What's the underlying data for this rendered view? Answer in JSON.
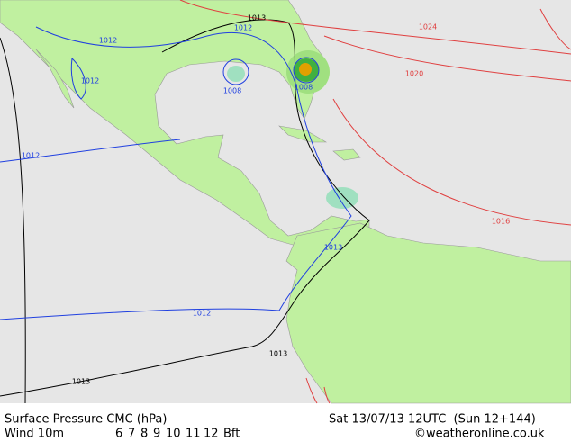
{
  "map": {
    "isobar_labels": [
      "1013",
      "1012",
      "1012",
      "1012",
      "1008",
      "1008",
      "1024",
      "1020",
      "1016",
      "1012",
      "1013",
      "1012",
      "1013",
      "1013"
    ]
  },
  "footer": {
    "title": "Surface Pressure CMC (hPa)",
    "time": "Sat 13/07/13 12UTC  (Sun 12+144)",
    "wind": "Wind 10m",
    "scale": [
      "6",
      "7",
      "8",
      "9",
      "10",
      "11",
      "12"
    ],
    "unit": "Bft",
    "credit": "©weatheronline.co.uk"
  }
}
